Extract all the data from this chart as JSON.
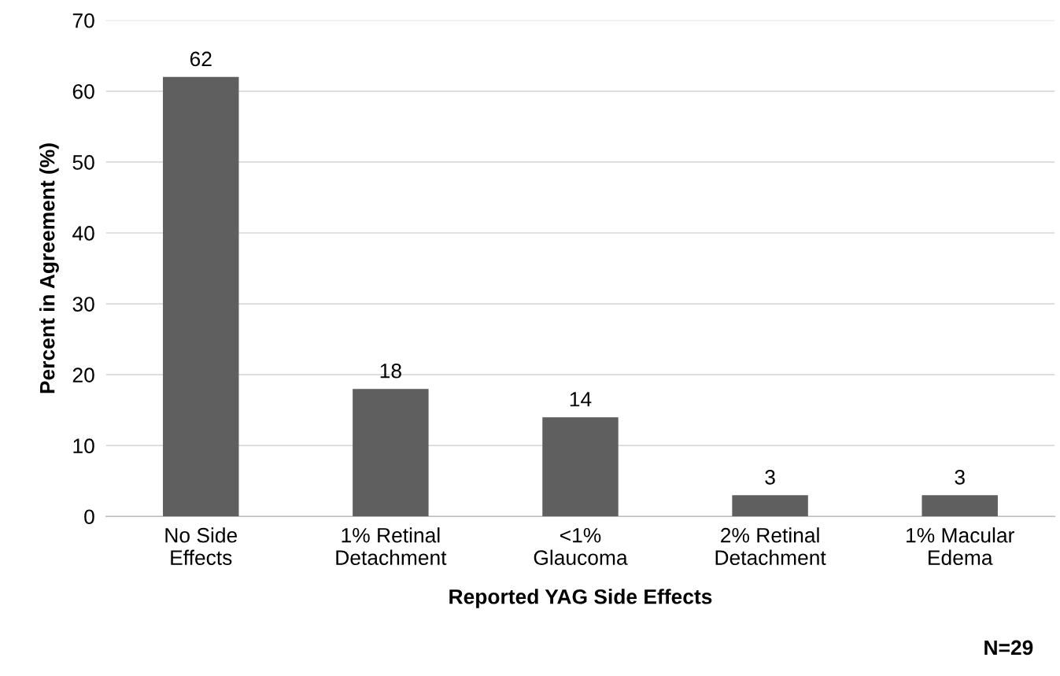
{
  "chart_data": {
    "type": "bar",
    "xlabel": "Reported YAG Side Effects",
    "ylabel": "Percent in Agreement (%)",
    "categories": [
      "No Side\nEffects",
      "1% Retinal\nDetachment",
      "<1%\nGlaucoma",
      "2% Retinal\nDetachment",
      "1% Macular\nEdema"
    ],
    "values": [
      62,
      18,
      14,
      3,
      3
    ],
    "color": "#5f5f5f",
    "ylim": [
      0,
      70
    ],
    "yticks": [
      0,
      10,
      20,
      30,
      40,
      50,
      60,
      70
    ],
    "grid": "y",
    "data_labels": true,
    "annotations": [
      "N=29"
    ]
  }
}
